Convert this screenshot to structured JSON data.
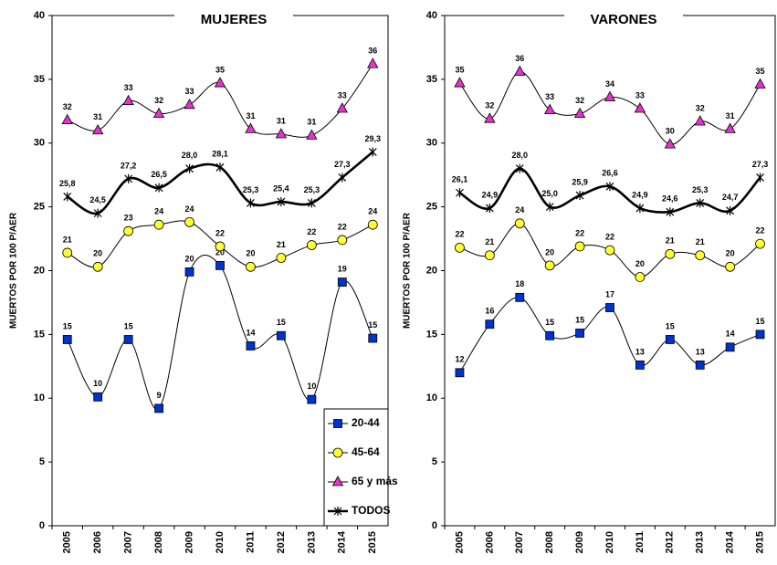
{
  "chart_data": [
    {
      "type": "line",
      "title": "MUJERES",
      "y_label": "MUERTOS POR 100 P/AER",
      "categories": [
        "2005",
        "2006",
        "2007",
        "2008",
        "2009",
        "2010",
        "2011",
        "2012",
        "2013",
        "2014",
        "2015"
      ],
      "ylim": [
        0,
        40
      ],
      "yticks": [
        0,
        5,
        10,
        15,
        20,
        25,
        30,
        35,
        40
      ],
      "legend": "lower right",
      "series": [
        {
          "name": "20-44",
          "color": "#0033cc",
          "marker": "square",
          "values": [
            14.6,
            10.1,
            14.6,
            9.2,
            19.9,
            20.4,
            14.1,
            14.9,
            9.9,
            19.1,
            14.7
          ],
          "value_labels": [
            "15",
            "10",
            "15",
            "9",
            "20",
            "20",
            "14",
            "15",
            "10",
            "19",
            "15"
          ]
        },
        {
          "name": "45-64",
          "color": "#ffff33",
          "marker": "circle",
          "values": [
            21.4,
            20.3,
            23.1,
            23.6,
            23.8,
            21.9,
            20.3,
            21.0,
            22.0,
            22.4,
            23.6
          ],
          "value_labels": [
            "21",
            "20",
            "23",
            "24",
            "24",
            "22",
            "20",
            "21",
            "22",
            "22",
            "24"
          ]
        },
        {
          "name": "65 y más",
          "color": "#e633cc",
          "marker": "triangle",
          "values": [
            31.8,
            31.0,
            33.3,
            32.3,
            33.0,
            34.7,
            31.1,
            30.7,
            30.6,
            32.7,
            36.2
          ],
          "value_labels": [
            "32",
            "31",
            "33",
            "32",
            "33",
            "35",
            "31",
            "31",
            "31",
            "33",
            "36"
          ]
        },
        {
          "name": "TODOS",
          "color": "#000000",
          "marker": "asterisk",
          "bold": true,
          "values": [
            25.8,
            24.5,
            27.2,
            26.5,
            28.0,
            28.1,
            25.3,
            25.4,
            25.3,
            27.3,
            29.3
          ],
          "value_labels": [
            "25,8",
            "24,5",
            "27,2",
            "26,5",
            "28,0",
            "28,1",
            "25,3",
            "25,4",
            "25,3",
            "27,3",
            "29,3"
          ]
        }
      ]
    },
    {
      "type": "line",
      "title": "VARONES",
      "y_label": "MUERTOS POR 100 P/AER",
      "categories": [
        "2005",
        "2006",
        "2007",
        "2008",
        "2009",
        "2010",
        "2011",
        "2012",
        "2013",
        "2014",
        "2015"
      ],
      "ylim": [
        0,
        40
      ],
      "yticks": [
        0,
        5,
        10,
        15,
        20,
        25,
        30,
        35,
        40
      ],
      "series": [
        {
          "color": "#0033cc",
          "marker": "square",
          "values": [
            12.0,
            15.8,
            17.9,
            14.9,
            15.1,
            17.1,
            12.6,
            14.6,
            12.6,
            14.0,
            15.0
          ],
          "value_labels": [
            "12",
            "16",
            "18",
            "15",
            "15",
            "17",
            "13",
            "15",
            "13",
            "14",
            "15"
          ]
        },
        {
          "color": "#ffff33",
          "marker": "circle",
          "values": [
            21.8,
            21.2,
            23.7,
            20.4,
            21.9,
            21.6,
            19.5,
            21.3,
            21.2,
            20.3,
            22.1
          ],
          "value_labels": [
            "22",
            "21",
            "24",
            "20",
            "22",
            "22",
            "20",
            "21",
            "21",
            "20",
            "22"
          ]
        },
        {
          "color": "#e633cc",
          "marker": "triangle",
          "values": [
            34.7,
            31.9,
            35.6,
            32.6,
            32.3,
            33.6,
            32.7,
            29.9,
            31.7,
            31.1,
            34.6
          ],
          "value_labels": [
            "35",
            "32",
            "36",
            "33",
            "32",
            "34",
            "33",
            "30",
            "32",
            "31",
            "35"
          ]
        },
        {
          "color": "#000000",
          "marker": "asterisk",
          "bold": true,
          "values": [
            26.1,
            24.9,
            28.0,
            25.0,
            25.9,
            26.6,
            24.9,
            24.6,
            25.3,
            24.7,
            27.3
          ],
          "value_labels": [
            "26,1",
            "24,9",
            "28,0",
            "25,0",
            "25,9",
            "26,6",
            "24,9",
            "24,6",
            "25,3",
            "24,7",
            "27,3"
          ]
        }
      ]
    }
  ]
}
